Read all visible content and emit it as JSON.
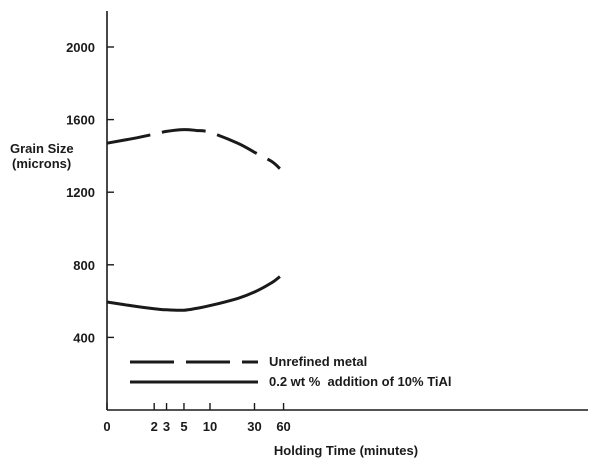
{
  "chart_data": {
    "type": "line",
    "title": "",
    "xlabel": "Holding Time (minutes)",
    "ylabel_line1": "Grain Size",
    "ylabel_line2": "(microns)",
    "x_tick_labels": [
      "0",
      "2",
      "3",
      "5",
      "10",
      "30",
      "60"
    ],
    "y_ticks": [
      400,
      800,
      1200,
      1600,
      2000
    ],
    "ylim": [
      0,
      2200
    ],
    "grid": false,
    "legend_position": "bottom-left",
    "series": [
      {
        "name": "Unrefined metal",
        "style": "dashed",
        "x": [
          0,
          1,
          2,
          3,
          5,
          7,
          10,
          20,
          30,
          45,
          55
        ],
        "y": [
          1470,
          1500,
          1520,
          1535,
          1545,
          1540,
          1530,
          1470,
          1420,
          1370,
          1330
        ]
      },
      {
        "name": "0.2 wt %  addition of 10% TiAl",
        "style": "solid",
        "x": [
          0,
          1,
          2,
          3,
          5,
          7,
          10,
          20,
          30,
          45,
          55
        ],
        "y": [
          595,
          570,
          558,
          552,
          550,
          560,
          575,
          615,
          650,
          700,
          735
        ]
      }
    ]
  }
}
